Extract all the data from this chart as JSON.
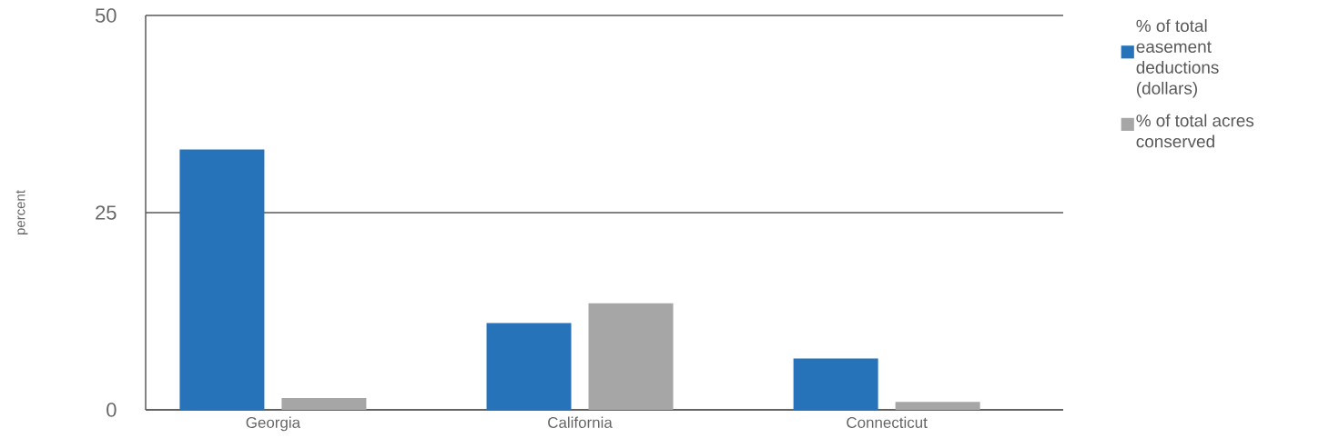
{
  "chart_data": {
    "type": "bar",
    "ylabel": "percent",
    "categories": [
      "Georgia",
      "California",
      "Connecticut"
    ],
    "series": [
      {
        "name": "% of total easement deductions (dollars)",
        "color": "#2773b9",
        "values": [
          33,
          11,
          6.5
        ]
      },
      {
        "name": "% of total acres conserved",
        "color": "#a6a6a6",
        "values": [
          1.5,
          13.5,
          1
        ]
      }
    ],
    "ylim": [
      0,
      50
    ],
    "yticks": [
      0,
      25,
      50
    ],
    "grid": "y",
    "legend": "top right"
  }
}
